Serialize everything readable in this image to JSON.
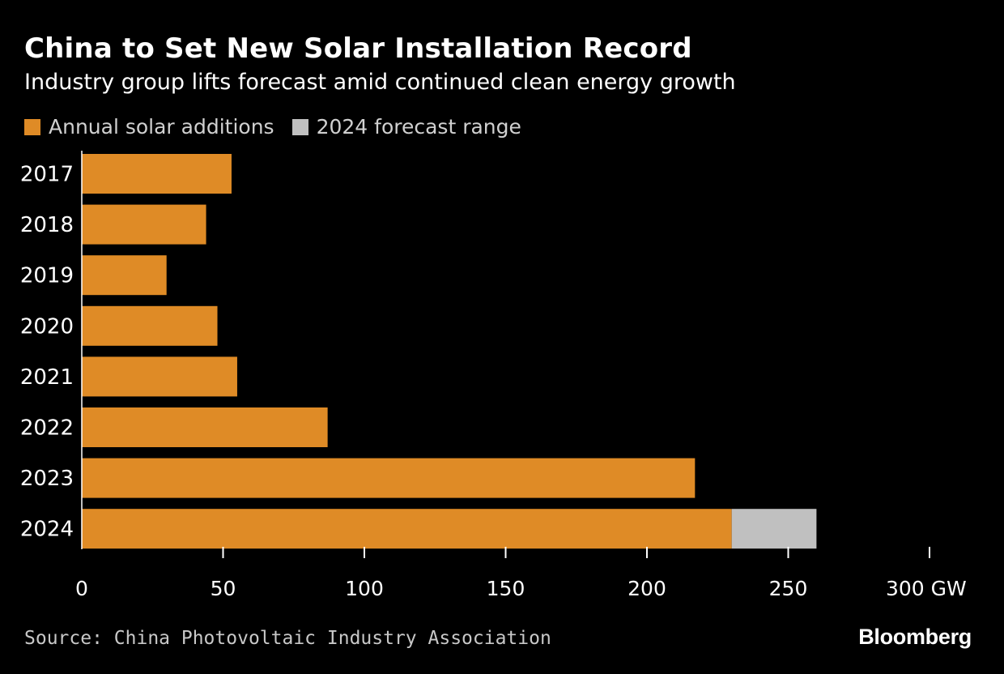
{
  "header": {
    "title": "China to Set New Solar Installation Record",
    "subtitle": "Industry group lifts forecast amid continued clean energy growth"
  },
  "legend": [
    {
      "label": "Annual solar additions",
      "color": "#df8b26"
    },
    {
      "label": "2024 forecast range",
      "color": "#c0c0c0"
    }
  ],
  "footer": {
    "source": "Source: China Photovoltaic Industry Association",
    "brand": "Bloomberg"
  },
  "chart_data": {
    "type": "bar",
    "orientation": "horizontal",
    "categories": [
      "2017",
      "2018",
      "2019",
      "2020",
      "2021",
      "2022",
      "2023",
      "2024"
    ],
    "series": [
      {
        "name": "Annual solar additions",
        "values": [
          53,
          44,
          30,
          48,
          55,
          87,
          217,
          230
        ],
        "color": "#df8b26"
      },
      {
        "name": "2024 forecast range",
        "values": [
          0,
          0,
          0,
          0,
          0,
          0,
          0,
          30
        ],
        "color": "#c0c0c0"
      }
    ],
    "stacked": true,
    "xlim": [
      0,
      300
    ],
    "x_ticks": [
      0,
      50,
      100,
      150,
      200,
      250,
      300
    ],
    "x_unit": "GW",
    "grid": false,
    "legend_position": "top-left"
  }
}
